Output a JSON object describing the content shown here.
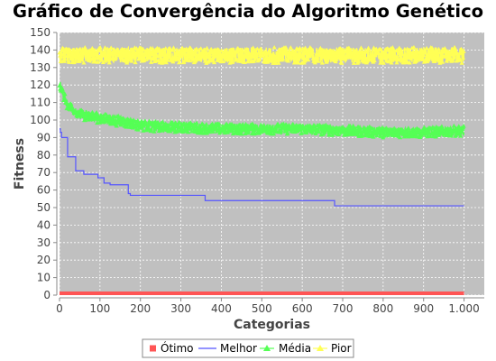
{
  "chart_data": {
    "type": "line",
    "title": "Gráfico de Convergência do Algoritmo Genético",
    "xlabel": "Categorias",
    "ylabel": "Fitness",
    "xlim": [
      0,
      1050
    ],
    "ylim": [
      0,
      150
    ],
    "x_ticks": [
      0,
      100,
      200,
      300,
      400,
      500,
      600,
      700,
      800,
      900,
      1000
    ],
    "x_tick_labels": [
      "0",
      "100",
      "200",
      "300",
      "400",
      "500",
      "600",
      "700",
      "800",
      "900",
      "1.000"
    ],
    "y_ticks": [
      0,
      10,
      20,
      30,
      40,
      50,
      60,
      70,
      80,
      90,
      100,
      110,
      120,
      130,
      140,
      150
    ],
    "y_tick_labels": [
      "0",
      "10",
      "20",
      "30",
      "40",
      "50",
      "60",
      "70",
      "80",
      "90",
      "100",
      "110",
      "120",
      "130",
      "140",
      "150"
    ],
    "grid": true,
    "legend_position": "bottom",
    "background": "#c0c0c0",
    "series": [
      {
        "name": "Ótimo",
        "color": "#ff5555",
        "style": "line",
        "x": [
          0,
          1000
        ],
        "y": [
          0,
          0
        ]
      },
      {
        "name": "Melhor",
        "color": "#5555ff",
        "style": "step",
        "x": [
          0,
          2,
          5,
          20,
          40,
          60,
          95,
          110,
          125,
          170,
          175,
          360,
          680,
          1000
        ],
        "y": [
          95,
          93,
          90,
          79,
          71,
          69,
          67,
          64,
          63,
          58,
          57,
          54,
          51,
          51
        ]
      },
      {
        "name": "Média",
        "color": "#55ff55",
        "style": "scatter-band",
        "x": [
          0,
          10,
          20,
          40,
          60,
          80,
          100,
          130,
          160,
          200,
          250,
          300,
          400,
          500,
          600,
          700,
          800,
          900,
          1000
        ],
        "y": [
          120,
          114,
          108,
          104,
          103,
          102,
          101,
          100,
          99,
          97,
          96,
          96,
          95,
          95,
          95,
          94,
          93,
          93,
          94
        ],
        "spread": 3
      },
      {
        "name": "Pior",
        "color": "#ffff55",
        "style": "scatter-band",
        "x": [
          0,
          1000
        ],
        "y": [
          137,
          137
        ],
        "spread": 4.5
      }
    ]
  }
}
